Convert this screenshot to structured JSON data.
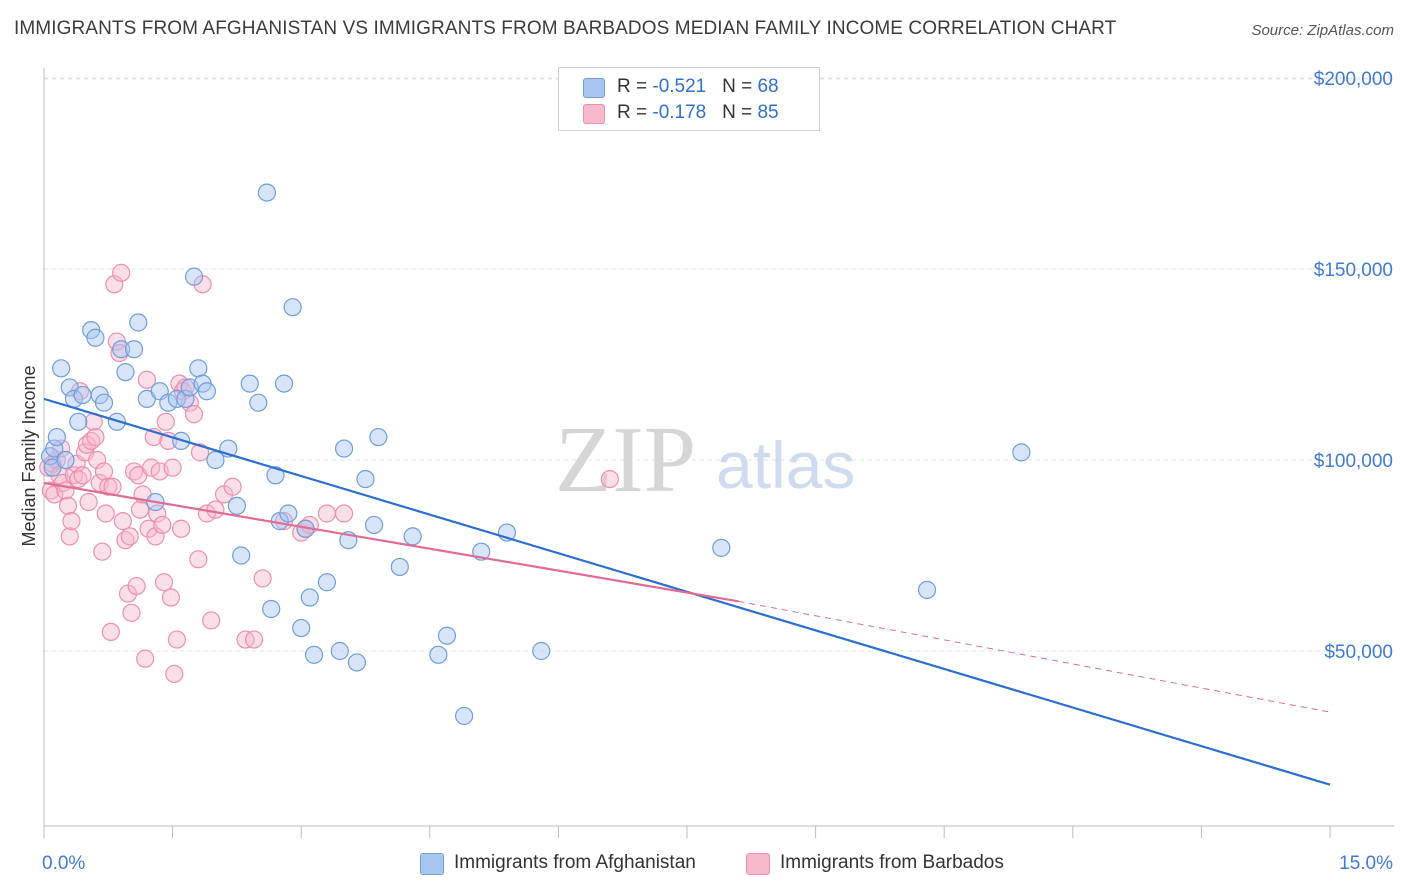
{
  "title": "IMMIGRANTS FROM AFGHANISTAN VS IMMIGRANTS FROM BARBADOS MEDIAN FAMILY INCOME CORRELATION CHART",
  "source": "Source: ZipAtlas.com",
  "watermark": {
    "zip": "ZIP",
    "atlas": "atlas"
  },
  "colors": {
    "blue_fill": "#a9c6f1",
    "blue_stroke": "#6f9ddf",
    "blue_line": "#2b6fd0",
    "pink_fill": "#f7b9cc",
    "pink_stroke": "#ee8fae",
    "pink_line": "#e06b94",
    "axis_label": "#3f7ad6",
    "grid": "#e3e3e3"
  },
  "legend": {
    "rows": [
      {
        "r_label": "R = ",
        "r_value": "-0.521",
        "n_label": "N = ",
        "n_value": "68"
      },
      {
        "r_label": "R = ",
        "r_value": "-0.178",
        "n_label": "N = ",
        "n_value": "85"
      }
    ]
  },
  "bottom_legend": [
    "Immigrants from Afghanistan",
    "Immigrants from Barbados"
  ],
  "chart_data": {
    "type": "scatter",
    "title": "IMMIGRANTS FROM AFGHANISTAN VS IMMIGRANTS FROM BARBADOS MEDIAN FAMILY INCOME CORRELATION CHART",
    "xlabel": "",
    "ylabel": "Median Family Income",
    "xlim": [
      0,
      15
    ],
    "ylim": [
      0,
      205000
    ],
    "x_tick_labels": [
      "0.0%",
      "15.0%"
    ],
    "y_ticks": [
      50000,
      100000,
      150000,
      200000
    ],
    "y_tick_labels": [
      "$50,000",
      "$100,000",
      "$150,000",
      "$200,000"
    ],
    "series": [
      {
        "name": "Immigrants from Afghanistan",
        "r": -0.521,
        "n": 68,
        "trend": {
          "x0": 0.0,
          "y0": 116000,
          "x1": 15.0,
          "y1": 15000
        },
        "points": [
          [
            0.07,
            101000
          ],
          [
            0.1,
            98000
          ],
          [
            0.12,
            103000
          ],
          [
            0.15,
            106000
          ],
          [
            0.2,
            124000
          ],
          [
            0.25,
            100000
          ],
          [
            0.3,
            119000
          ],
          [
            0.35,
            116000
          ],
          [
            0.4,
            110000
          ],
          [
            0.45,
            117000
          ],
          [
            0.55,
            134000
          ],
          [
            0.6,
            132000
          ],
          [
            0.65,
            117000
          ],
          [
            0.7,
            115000
          ],
          [
            0.85,
            110000
          ],
          [
            0.9,
            129000
          ],
          [
            0.95,
            123000
          ],
          [
            1.05,
            129000
          ],
          [
            1.1,
            136000
          ],
          [
            1.2,
            116000
          ],
          [
            1.3,
            89000
          ],
          [
            1.35,
            118000
          ],
          [
            1.45,
            115000
          ],
          [
            1.55,
            116000
          ],
          [
            1.6,
            105000
          ],
          [
            1.65,
            116000
          ],
          [
            1.7,
            119000
          ],
          [
            1.75,
            148000
          ],
          [
            1.8,
            124000
          ],
          [
            1.85,
            120000
          ],
          [
            1.9,
            118000
          ],
          [
            2.0,
            100000
          ],
          [
            2.15,
            103000
          ],
          [
            2.25,
            88000
          ],
          [
            2.3,
            75000
          ],
          [
            2.4,
            120000
          ],
          [
            2.5,
            115000
          ],
          [
            2.6,
            170000
          ],
          [
            2.65,
            61000
          ],
          [
            2.7,
            96000
          ],
          [
            2.75,
            84000
          ],
          [
            2.8,
            120000
          ],
          [
            2.85,
            86000
          ],
          [
            2.9,
            140000
          ],
          [
            3.0,
            56000
          ],
          [
            3.05,
            82000
          ],
          [
            3.1,
            64000
          ],
          [
            3.15,
            49000
          ],
          [
            3.3,
            68000
          ],
          [
            3.45,
            50000
          ],
          [
            3.5,
            103000
          ],
          [
            3.55,
            79000
          ],
          [
            3.65,
            47000
          ],
          [
            3.75,
            95000
          ],
          [
            3.85,
            83000
          ],
          [
            3.9,
            106000
          ],
          [
            4.15,
            72000
          ],
          [
            4.3,
            80000
          ],
          [
            4.6,
            49000
          ],
          [
            4.7,
            54000
          ],
          [
            4.9,
            33000
          ],
          [
            5.1,
            76000
          ],
          [
            5.4,
            81000
          ],
          [
            5.8,
            50000
          ],
          [
            6.5,
            null
          ],
          [
            7.9,
            77000
          ],
          [
            10.3,
            66000
          ],
          [
            11.4,
            102000
          ]
        ]
      },
      {
        "name": "Immigrants from Barbados",
        "r": -0.178,
        "n": 85,
        "trend": {
          "x0": 0.0,
          "y0": 94000,
          "x1": 8.1,
          "y1": 63000
        },
        "trend_dashed": {
          "x0": 8.1,
          "y0": 63000,
          "x1": 15.0,
          "y1": 34000
        },
        "points": [
          [
            0.05,
            98000
          ],
          [
            0.08,
            92000
          ],
          [
            0.1,
            99000
          ],
          [
            0.12,
            91000
          ],
          [
            0.15,
            100000
          ],
          [
            0.18,
            96000
          ],
          [
            0.2,
            103000
          ],
          [
            0.22,
            94000
          ],
          [
            0.25,
            92000
          ],
          [
            0.28,
            88000
          ],
          [
            0.3,
            80000
          ],
          [
            0.32,
            84000
          ],
          [
            0.35,
            96000
          ],
          [
            0.38,
            99000
          ],
          [
            0.4,
            95000
          ],
          [
            0.42,
            118000
          ],
          [
            0.45,
            96000
          ],
          [
            0.48,
            102000
          ],
          [
            0.5,
            104000
          ],
          [
            0.52,
            89000
          ],
          [
            0.55,
            105000
          ],
          [
            0.58,
            110000
          ],
          [
            0.6,
            106000
          ],
          [
            0.62,
            100000
          ],
          [
            0.65,
            94000
          ],
          [
            0.68,
            76000
          ],
          [
            0.7,
            97000
          ],
          [
            0.72,
            86000
          ],
          [
            0.75,
            93000
          ],
          [
            0.78,
            55000
          ],
          [
            0.8,
            93000
          ],
          [
            0.82,
            146000
          ],
          [
            0.85,
            131000
          ],
          [
            0.88,
            128000
          ],
          [
            0.9,
            149000
          ],
          [
            0.92,
            84000
          ],
          [
            0.95,
            79000
          ],
          [
            0.98,
            65000
          ],
          [
            1.0,
            80000
          ],
          [
            1.02,
            60000
          ],
          [
            1.05,
            97000
          ],
          [
            1.08,
            67000
          ],
          [
            1.1,
            96000
          ],
          [
            1.12,
            87000
          ],
          [
            1.15,
            91000
          ],
          [
            1.18,
            48000
          ],
          [
            1.2,
            121000
          ],
          [
            1.22,
            82000
          ],
          [
            1.25,
            98000
          ],
          [
            1.28,
            106000
          ],
          [
            1.3,
            80000
          ],
          [
            1.32,
            86000
          ],
          [
            1.35,
            97000
          ],
          [
            1.38,
            83000
          ],
          [
            1.4,
            68000
          ],
          [
            1.42,
            110000
          ],
          [
            1.45,
            105000
          ],
          [
            1.48,
            64000
          ],
          [
            1.5,
            98000
          ],
          [
            1.52,
            44000
          ],
          [
            1.55,
            53000
          ],
          [
            1.58,
            120000
          ],
          [
            1.6,
            82000
          ],
          [
            1.62,
            118000
          ],
          [
            1.65,
            119000
          ],
          [
            1.7,
            115000
          ],
          [
            1.75,
            112000
          ],
          [
            1.8,
            74000
          ],
          [
            1.82,
            102000
          ],
          [
            1.85,
            146000
          ],
          [
            1.9,
            86000
          ],
          [
            1.95,
            58000
          ],
          [
            2.0,
            87000
          ],
          [
            2.1,
            91000
          ],
          [
            2.2,
            93000
          ],
          [
            2.35,
            53000
          ],
          [
            2.45,
            53000
          ],
          [
            2.55,
            69000
          ],
          [
            2.8,
            84000
          ],
          [
            3.0,
            81000
          ],
          [
            3.05,
            82000
          ],
          [
            3.1,
            83000
          ],
          [
            3.3,
            86000
          ],
          [
            3.5,
            86000
          ],
          [
            6.6,
            95000
          ]
        ]
      }
    ]
  }
}
